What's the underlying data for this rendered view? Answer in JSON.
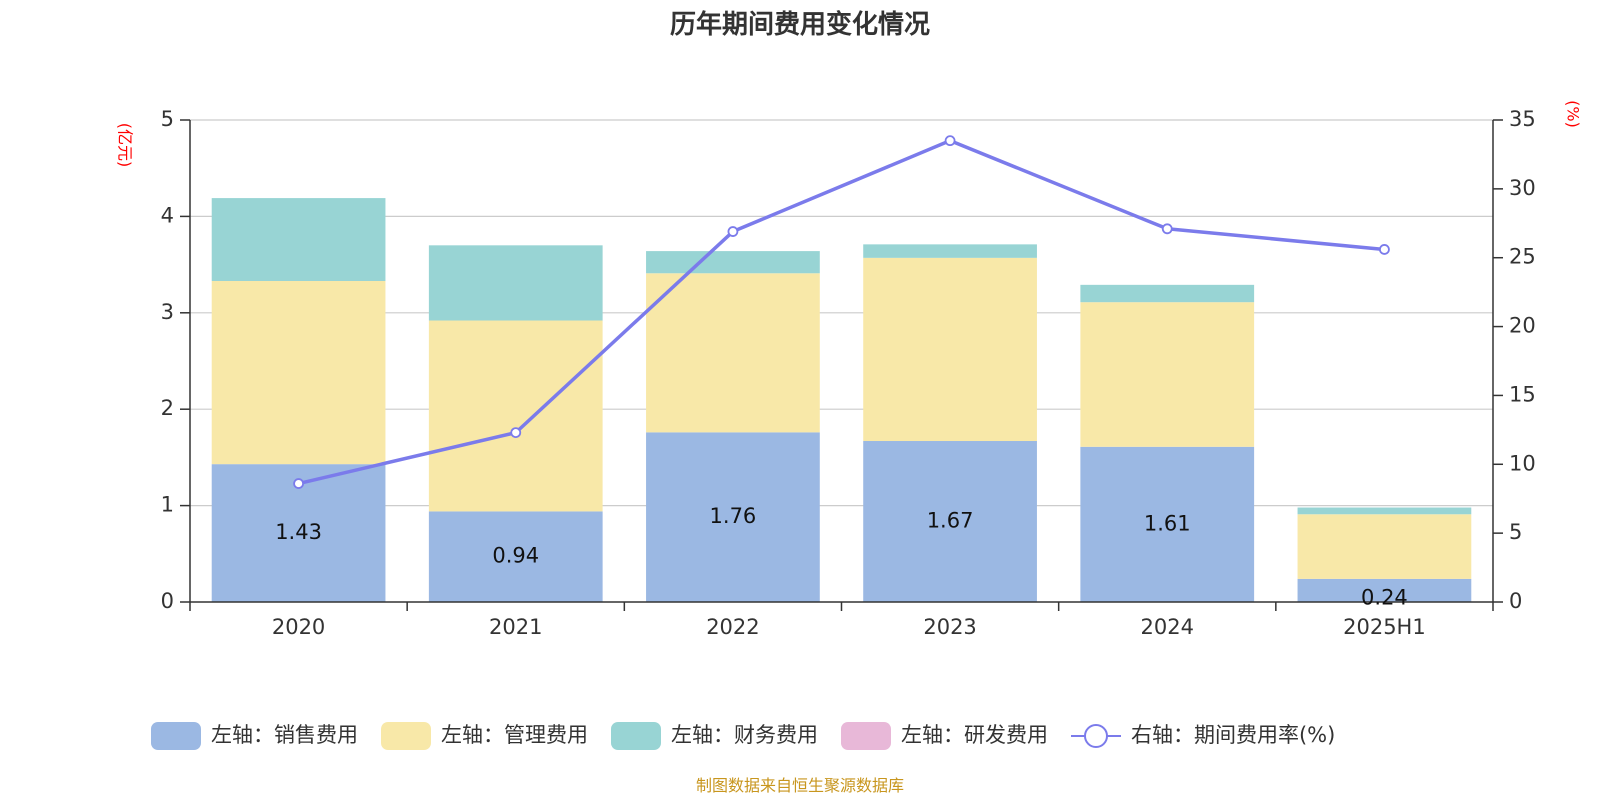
{
  "chart_data": {
    "type": "bar",
    "title": "历年期间费用变化情况",
    "categories": [
      "2020",
      "2021",
      "2022",
      "2023",
      "2024",
      "2025H1"
    ],
    "stacked": true,
    "left_axis": {
      "unit": "(亿元)",
      "ylim": [
        0,
        5
      ],
      "ticks": [
        0,
        1,
        2,
        3,
        4,
        5
      ]
    },
    "right_axis": {
      "unit": "(%)",
      "ylim": [
        0,
        35
      ],
      "ticks": [
        0,
        5,
        10,
        15,
        20,
        25,
        30,
        35
      ]
    },
    "grid": true,
    "legend_position": "bottom",
    "series": [
      {
        "name": "左轴：销售费用",
        "axis": "left",
        "type": "bar",
        "color": "#9bb8e3",
        "values": [
          1.43,
          0.94,
          1.76,
          1.67,
          1.61,
          0.24
        ],
        "labels": [
          "1.43",
          "0.94",
          "1.76",
          "1.67",
          "1.61",
          "0.24"
        ]
      },
      {
        "name": "左轴：管理费用",
        "axis": "left",
        "type": "bar",
        "color": "#f8e8a8",
        "values": [
          1.9,
          1.98,
          1.65,
          1.9,
          1.5,
          0.67
        ]
      },
      {
        "name": "左轴：财务费用",
        "axis": "left",
        "type": "bar",
        "color": "#98d4d4",
        "values": [
          0.86,
          0.78,
          0.23,
          0.14,
          0.18,
          0.07
        ]
      },
      {
        "name": "左轴：研发费用",
        "axis": "left",
        "type": "bar",
        "color": "#e8b8d8",
        "values": [
          0,
          0,
          0,
          0,
          0,
          0
        ]
      },
      {
        "name": "右轴：期间费用率(%)",
        "axis": "right",
        "type": "line",
        "color": "#7b7beb",
        "values": [
          8.6,
          12.3,
          26.9,
          33.5,
          27.1,
          25.6
        ]
      }
    ]
  },
  "source": "制图数据来自恒生聚源数据库"
}
